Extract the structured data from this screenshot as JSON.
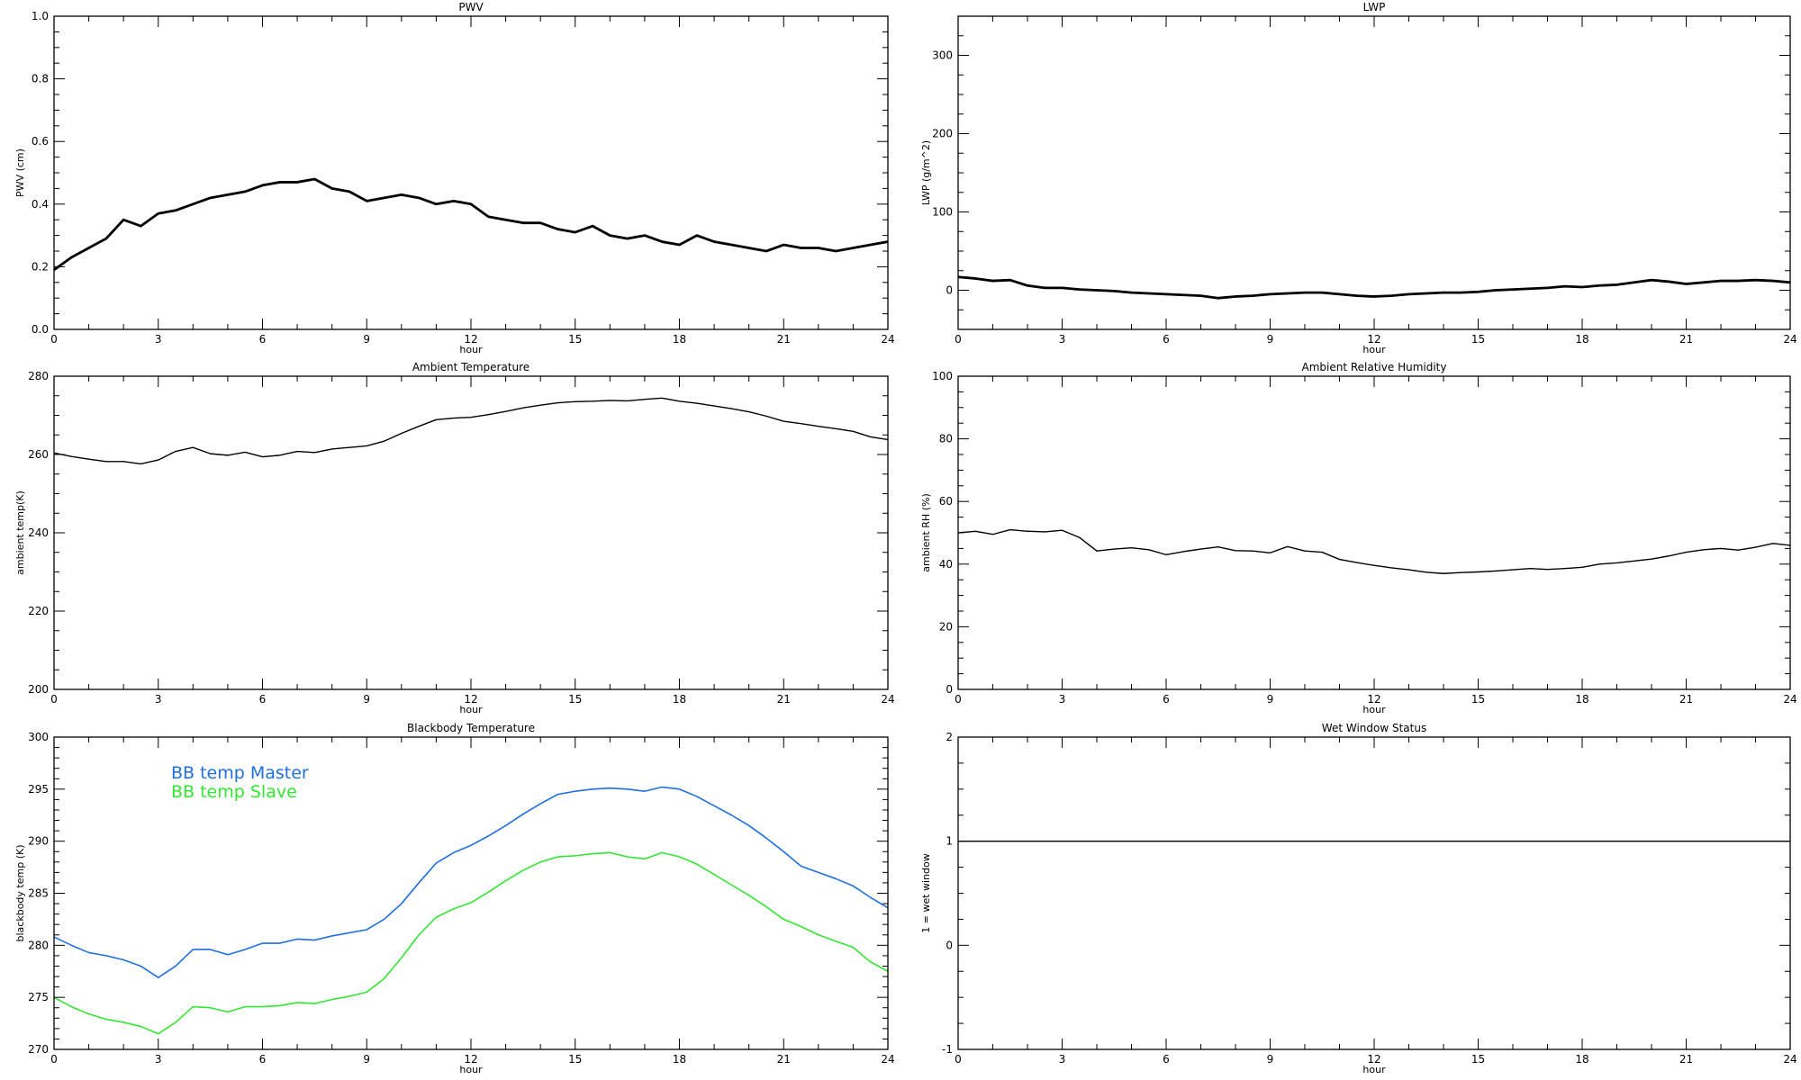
{
  "chart_data": [
    {
      "type": "line",
      "title": "PWV",
      "xlabel": "hour",
      "ylabel": "PWV (cm)",
      "xlim": [
        0,
        24
      ],
      "ylim": [
        0,
        1
      ],
      "grid": false,
      "xticks": [
        0,
        3,
        6,
        9,
        12,
        15,
        18,
        21,
        24
      ],
      "yticks": [
        0,
        0.2,
        0.4,
        0.6,
        0.8,
        1.0
      ],
      "yticklabels": [
        "0.0",
        "0.2",
        "0.4",
        "0.6",
        "0.8",
        "1.0"
      ],
      "x": [
        0,
        0.5,
        1,
        1.5,
        2,
        2.5,
        3,
        3.5,
        4,
        4.5,
        5,
        5.5,
        6,
        6.5,
        7,
        7.5,
        8,
        8.5,
        9,
        9.5,
        10,
        10.5,
        11,
        11.5,
        12,
        12.5,
        13,
        13.5,
        14,
        14.5,
        15,
        15.5,
        16,
        16.5,
        17,
        17.5,
        18,
        18.5,
        19,
        19.5,
        20,
        20.5,
        21,
        21.5,
        22,
        22.5,
        23,
        23.5,
        24
      ],
      "series": [
        {
          "color": "#000000",
          "y": [
            0.19,
            0.23,
            0.26,
            0.29,
            0.35,
            0.33,
            0.37,
            0.38,
            0.4,
            0.42,
            0.43,
            0.44,
            0.46,
            0.47,
            0.47,
            0.48,
            0.45,
            0.44,
            0.41,
            0.42,
            0.43,
            0.42,
            0.4,
            0.41,
            0.4,
            0.36,
            0.35,
            0.34,
            0.34,
            0.32,
            0.31,
            0.33,
            0.3,
            0.29,
            0.3,
            0.28,
            0.27,
            0.3,
            0.28,
            0.27,
            0.26,
            0.25,
            0.27,
            0.26,
            0.26,
            0.25,
            0.26,
            0.27,
            0.28
          ]
        }
      ]
    },
    {
      "type": "line",
      "title": "LWP",
      "xlabel": "hour",
      "ylabel": "LWP (g/m^2)",
      "xlim": [
        0,
        24
      ],
      "ylim": [
        -50,
        350
      ],
      "grid": false,
      "xticks": [
        0,
        3,
        6,
        9,
        12,
        15,
        18,
        21,
        24
      ],
      "yticks": [
        0,
        100,
        200,
        300
      ],
      "yticklabels": [
        "0",
        "100",
        "200",
        "300"
      ],
      "x": [
        0,
        0.5,
        1,
        1.5,
        2,
        2.5,
        3,
        3.5,
        4,
        4.5,
        5,
        5.5,
        6,
        6.5,
        7,
        7.5,
        8,
        8.5,
        9,
        9.5,
        10,
        10.5,
        11,
        11.5,
        12,
        12.5,
        13,
        13.5,
        14,
        14.5,
        15,
        15.5,
        16,
        16.5,
        17,
        17.5,
        18,
        18.5,
        19,
        19.5,
        20,
        20.5,
        21,
        21.5,
        22,
        22.5,
        23,
        23.5,
        24
      ],
      "series": [
        {
          "color": "#000000",
          "y": [
            17,
            15,
            12,
            13,
            6,
            3,
            3,
            1,
            0,
            -1,
            -3,
            -4,
            -5,
            -6,
            -7,
            -10,
            -8,
            -7,
            -5,
            -4,
            -3,
            -3,
            -5,
            -7,
            -8,
            -7,
            -5,
            -4,
            -3,
            -3,
            -2,
            0,
            1,
            2,
            3,
            5,
            4,
            6,
            7,
            10,
            13,
            11,
            8,
            10,
            12,
            12,
            13,
            12,
            10
          ]
        }
      ]
    },
    {
      "type": "line",
      "title": "Ambient Temperature",
      "xlabel": "hour",
      "ylabel": "ambient temp(K)",
      "xlim": [
        0,
        24
      ],
      "ylim": [
        200,
        280
      ],
      "grid": false,
      "xticks": [
        0,
        3,
        6,
        9,
        12,
        15,
        18,
        21,
        24
      ],
      "yticks": [
        200,
        220,
        240,
        260,
        280
      ],
      "yticklabels": [
        "200",
        "220",
        "240",
        "260",
        "280"
      ],
      "x": [
        0,
        0.5,
        1,
        1.5,
        2,
        2.5,
        3,
        3.5,
        4,
        4.5,
        5,
        5.5,
        6,
        6.5,
        7,
        7.5,
        8,
        8.5,
        9,
        9.5,
        10,
        10.5,
        11,
        11.5,
        12,
        12.5,
        13,
        13.5,
        14,
        14.5,
        15,
        15.5,
        16,
        16.5,
        17,
        17.5,
        18,
        18.5,
        19,
        19.5,
        20,
        20.5,
        21,
        21.5,
        22,
        22.5,
        23,
        23.5,
        24
      ],
      "series": [
        {
          "color": "#000000",
          "y": [
            260.4,
            259.5,
            258.8,
            258.2,
            258.2,
            257.6,
            258.6,
            260.8,
            261.8,
            260.2,
            259.8,
            260.6,
            259.4,
            259.8,
            260.8,
            260.5,
            261.4,
            261.8,
            262.2,
            263.4,
            265.4,
            267.2,
            268.9,
            269.3,
            269.5,
            270.2,
            271.0,
            271.9,
            272.6,
            273.2,
            273.5,
            273.6,
            273.8,
            273.7,
            274.1,
            274.4,
            273.6,
            273.1,
            272.4,
            271.7,
            270.9,
            269.8,
            268.5,
            267.9,
            267.2,
            266.6,
            265.9,
            264.5,
            263.8
          ]
        }
      ]
    },
    {
      "type": "line",
      "title": "Ambient Relative Humidity",
      "xlabel": "hour",
      "ylabel": "ambient RH (%)",
      "xlim": [
        0,
        24
      ],
      "ylim": [
        0,
        100
      ],
      "grid": false,
      "xticks": [
        0,
        3,
        6,
        9,
        12,
        15,
        18,
        21,
        24
      ],
      "yticks": [
        0,
        20,
        40,
        60,
        80,
        100
      ],
      "yticklabels": [
        "0",
        "20",
        "40",
        "60",
        "80",
        "100"
      ],
      "x": [
        0,
        0.5,
        1,
        1.5,
        2,
        2.5,
        3,
        3.5,
        4,
        4.5,
        5,
        5.5,
        6,
        6.5,
        7,
        7.5,
        8,
        8.5,
        9,
        9.5,
        10,
        10.5,
        11,
        11.5,
        12,
        12.5,
        13,
        13.5,
        14,
        14.5,
        15,
        15.5,
        16,
        16.5,
        17,
        17.5,
        18,
        18.5,
        19,
        19.5,
        20,
        20.5,
        21,
        21.5,
        22,
        22.5,
        23,
        23.5,
        24
      ],
      "series": [
        {
          "color": "#000000",
          "y": [
            50.0,
            50.5,
            49.5,
            51.0,
            50.5,
            50.3,
            50.8,
            48.5,
            44.2,
            44.8,
            45.2,
            44.6,
            43.0,
            44.0,
            44.8,
            45.5,
            44.3,
            44.2,
            43.6,
            45.6,
            44.2,
            43.8,
            41.5,
            40.5,
            39.6,
            38.8,
            38.2,
            37.4,
            37.0,
            37.3,
            37.5,
            37.8,
            38.2,
            38.6,
            38.3,
            38.6,
            39.0,
            40.0,
            40.4,
            41.0,
            41.6,
            42.6,
            43.8,
            44.6,
            45.0,
            44.5,
            45.4,
            46.6,
            46.0
          ]
        }
      ]
    },
    {
      "type": "line",
      "title": "Blackbody Temperature",
      "xlabel": "hour",
      "ylabel": "blackbody temp (K)",
      "xlim": [
        0,
        24
      ],
      "ylim": [
        270,
        300
      ],
      "grid": false,
      "legend": "top-left",
      "xticks": [
        0,
        3,
        6,
        9,
        12,
        15,
        18,
        21,
        24
      ],
      "yticks": [
        270,
        275,
        280,
        285,
        290,
        295,
        300
      ],
      "yticklabels": [
        "270",
        "275",
        "280",
        "285",
        "290",
        "295",
        "300"
      ],
      "x": [
        0,
        0.5,
        1,
        1.5,
        2,
        2.5,
        3,
        3.5,
        4,
        4.5,
        5,
        5.5,
        6,
        6.5,
        7,
        7.5,
        8,
        8.5,
        9,
        9.5,
        10,
        10.5,
        11,
        11.5,
        12,
        12.5,
        13,
        13.5,
        14,
        14.5,
        15,
        15.5,
        16,
        16.5,
        17,
        17.5,
        18,
        18.5,
        19,
        19.5,
        20,
        20.5,
        21,
        21.5,
        22,
        22.5,
        23,
        23.5,
        24
      ],
      "series": [
        {
          "name": "BB temp Master",
          "color": "#1f6fe0",
          "y": [
            280.8,
            280.0,
            279.3,
            279.0,
            278.6,
            278.0,
            276.9,
            278.0,
            279.6,
            279.6,
            279.1,
            279.6,
            280.2,
            280.2,
            280.6,
            280.5,
            280.9,
            281.2,
            281.5,
            282.5,
            284.0,
            286.0,
            287.9,
            288.9,
            289.6,
            290.5,
            291.5,
            292.6,
            293.6,
            294.5,
            294.8,
            295.0,
            295.1,
            295.0,
            294.8,
            295.2,
            295.0,
            294.3,
            293.4,
            292.5,
            291.5,
            290.3,
            289.0,
            287.6,
            287.0,
            286.4,
            285.7,
            284.6,
            283.6
          ]
        },
        {
          "name": "BB temp Slave",
          "color": "#33e633",
          "y": [
            275.0,
            274.1,
            273.4,
            272.9,
            272.6,
            272.2,
            271.5,
            272.6,
            274.1,
            274.0,
            273.6,
            274.1,
            274.1,
            274.2,
            274.5,
            274.4,
            274.8,
            275.1,
            275.5,
            276.8,
            278.8,
            281.0,
            282.7,
            283.5,
            284.1,
            285.1,
            286.2,
            287.2,
            288.0,
            288.5,
            288.6,
            288.8,
            288.9,
            288.5,
            288.3,
            288.9,
            288.5,
            287.8,
            286.8,
            285.8,
            284.8,
            283.7,
            282.5,
            281.8,
            281.0,
            280.4,
            279.8,
            278.4,
            277.5
          ]
        }
      ]
    },
    {
      "type": "line",
      "title": "Wet Window Status",
      "xlabel": "hour",
      "ylabel": "1 = wet window",
      "xlim": [
        0,
        24
      ],
      "ylim": [
        -1,
        2
      ],
      "grid": false,
      "xticks": [
        0,
        3,
        6,
        9,
        12,
        15,
        18,
        21,
        24
      ],
      "yticks": [
        -1,
        0,
        1,
        2
      ],
      "yticklabels": [
        "-1",
        "0",
        "1",
        "2"
      ],
      "x": [
        0,
        24
      ],
      "series": [
        {
          "color": "#000000",
          "y": [
            1,
            1
          ]
        }
      ]
    }
  ]
}
